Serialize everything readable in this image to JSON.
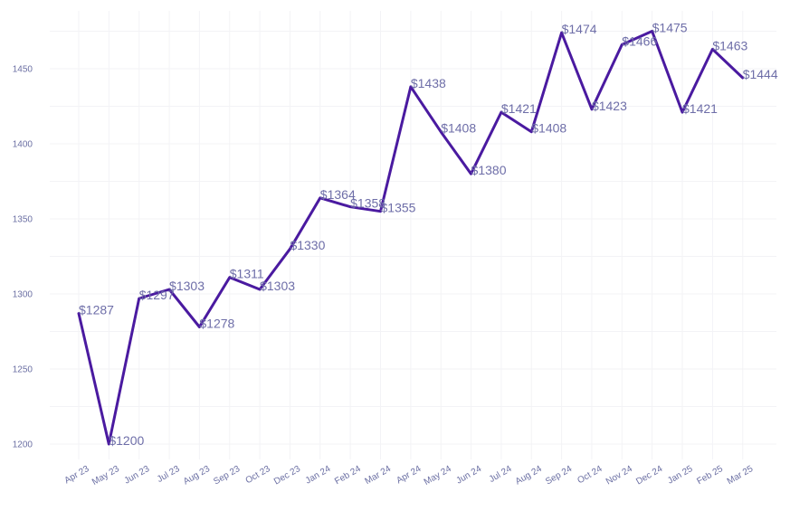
{
  "chart_data": {
    "type": "line",
    "title": "",
    "xlabel": "",
    "ylabel": "",
    "categories": [
      "Apr 23",
      "May 23",
      "Jun 23",
      "Jul 23",
      "Aug 23",
      "Sep 23",
      "Oct 23",
      "Dec 23",
      "Jan 24",
      "Feb 24",
      "Mar 24",
      "Apr 24",
      "May 24",
      "Jun 24",
      "Jul 24",
      "Aug 24",
      "Sep 24",
      "Oct 24",
      "Nov 24",
      "Dec 24",
      "Jan 25",
      "Feb 25",
      "Mar 25"
    ],
    "values": [
      1287,
      1200,
      1297,
      1303,
      1278,
      1311,
      1303,
      1330,
      1364,
      1358,
      1355,
      1438,
      1408,
      1380,
      1421,
      1408,
      1474,
      1423,
      1466,
      1475,
      1421,
      1463,
      1444
    ],
    "data_labels": [
      "$1287",
      "$1200",
      "$1297",
      "$1303",
      "$1278",
      "$1311",
      "$1303",
      "$1330",
      "$1364",
      "$1358",
      "$1355",
      "$1438",
      "$1408",
      "$1380",
      "$1421",
      "$1408",
      "$1474",
      "$1423",
      "$1466",
      "$1475",
      "$1421",
      "$1463",
      "$1444"
    ],
    "yticks": [
      1200,
      1250,
      1300,
      1350,
      1400,
      1450
    ],
    "ylim": [
      1185,
      1490
    ],
    "grid": true,
    "line_color": "#4a1aa0",
    "label_color": "#6e6ea8",
    "tick_color": "#6b6fa3"
  }
}
